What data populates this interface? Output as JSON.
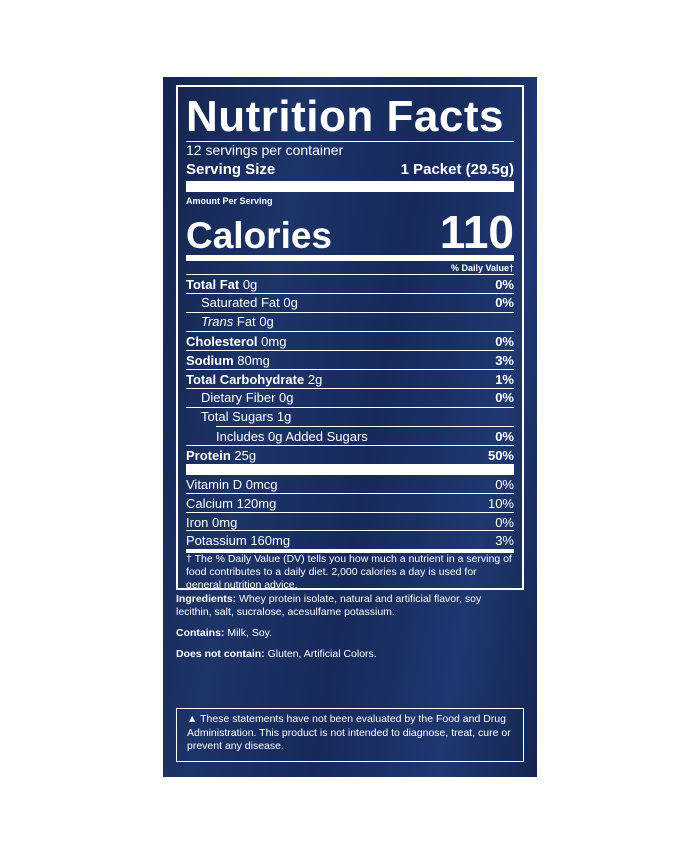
{
  "title": "Nutrition Facts",
  "servings": "12 servings per container",
  "serving_size": {
    "label": "Serving Size",
    "value": "1 Packet (29.5g)"
  },
  "amount_per_serving": "Amount Per Serving",
  "calories": {
    "label": "Calories",
    "value": "110"
  },
  "daily_value_header": "% Daily Value†",
  "nutrients": [
    {
      "name": "Total Fat",
      "amount": "0g",
      "dv": "0%"
    },
    {
      "name": "Saturated Fat",
      "amount": "0g",
      "dv": "0%"
    },
    {
      "name": [
        "Trans",
        "Fat"
      ],
      "amount": "0g"
    },
    {
      "name": "Cholesterol",
      "amount": "0mg",
      "dv": "0%"
    },
    {
      "name": "Sodium",
      "amount": "80mg",
      "dv": "3%"
    },
    {
      "name": "Total Carbohydrate",
      "amount": "2g",
      "dv": "1%"
    },
    {
      "name": "Dietary Fiber",
      "amount": "0g",
      "dv": "0%"
    },
    {
      "name": "Total Sugars",
      "amount": "1g"
    },
    {
      "name": "Includes 0g Added Sugars",
      "dv": "0%"
    },
    {
      "name": "Protein",
      "amount": "25g",
      "dv": "50%"
    }
  ],
  "vitamins": [
    {
      "name": "Vitamin D",
      "amount": "0mcg",
      "dv": "0%"
    },
    {
      "name": "Calcium",
      "amount": "120mg",
      "dv": "10%"
    },
    {
      "name": "Iron",
      "amount": "0mg",
      "dv": "0%"
    },
    {
      "name": "Potassium",
      "amount": "160mg",
      "dv": "3%"
    }
  ],
  "footnote": "† The % Daily Value (DV) tells you how much a nutrient in a serving of food contributes to a daily diet. 2,000 calories a day is used for general nutrition advice.",
  "ingredients": {
    "label": "Ingredients:",
    "text": "Whey protein isolate, natural and artificial flavor, soy lecithin, salt, sucralose, acesulfame potassium."
  },
  "contains": {
    "label": "Contains:",
    "text": "Milk, Soy."
  },
  "does_not_contain": {
    "label": "Does not contain:",
    "text": "Gluten, Artificial Colors."
  },
  "disclaimer": "▲ These statements have not been evaluated by the Food and Drug Administration. This product is not intended to diagnose, treat, cure or prevent any disease."
}
